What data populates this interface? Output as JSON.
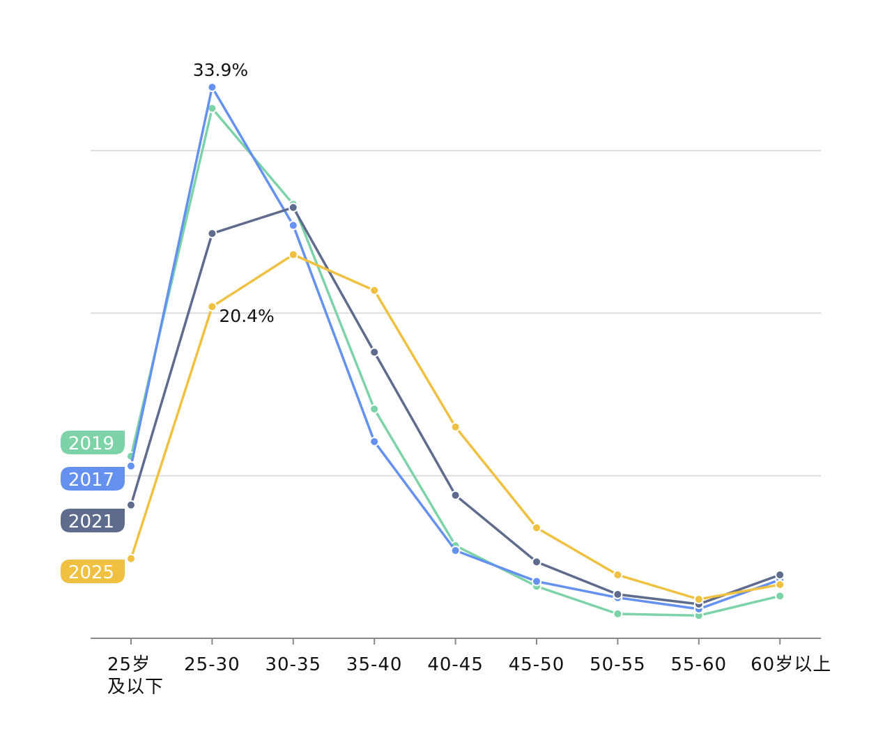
{
  "chart_data": {
    "type": "line",
    "title": "",
    "xlabel": "",
    "ylabel": "",
    "categories": [
      "25岁\n及以下",
      "25-30",
      "30-35",
      "35-40",
      "40-45",
      "45-50",
      "50-55",
      "55-60",
      "60岁以上"
    ],
    "ylim": [
      0,
      36
    ],
    "grid": true,
    "gridlines_y": [
      10,
      20,
      30
    ],
    "legend_placement": "left, tags at start of each series",
    "series": [
      {
        "name": "2019",
        "color": "#7dd3a8",
        "values": [
          11.2,
          32.6,
          26.7,
          14.1,
          5.7,
          3.2,
          1.5,
          1.4,
          2.6
        ]
      },
      {
        "name": "2017",
        "color": "#6491f0",
        "values": [
          10.6,
          33.9,
          25.4,
          12.1,
          5.4,
          3.5,
          2.5,
          1.8,
          3.6
        ]
      },
      {
        "name": "2021",
        "color": "#5f6b8d",
        "values": [
          8.2,
          24.9,
          26.5,
          17.6,
          8.8,
          4.7,
          2.7,
          2.1,
          3.9
        ]
      },
      {
        "name": "2025",
        "color": "#f0c040",
        "values": [
          4.9,
          20.4,
          23.6,
          21.4,
          13.0,
          6.8,
          3.9,
          2.4,
          3.3
        ]
      }
    ],
    "annotations": [
      {
        "series": "2017",
        "category": "25-30",
        "text": "33.9%"
      },
      {
        "series": "2025",
        "category": "25-30",
        "text": "20.4%"
      }
    ]
  }
}
